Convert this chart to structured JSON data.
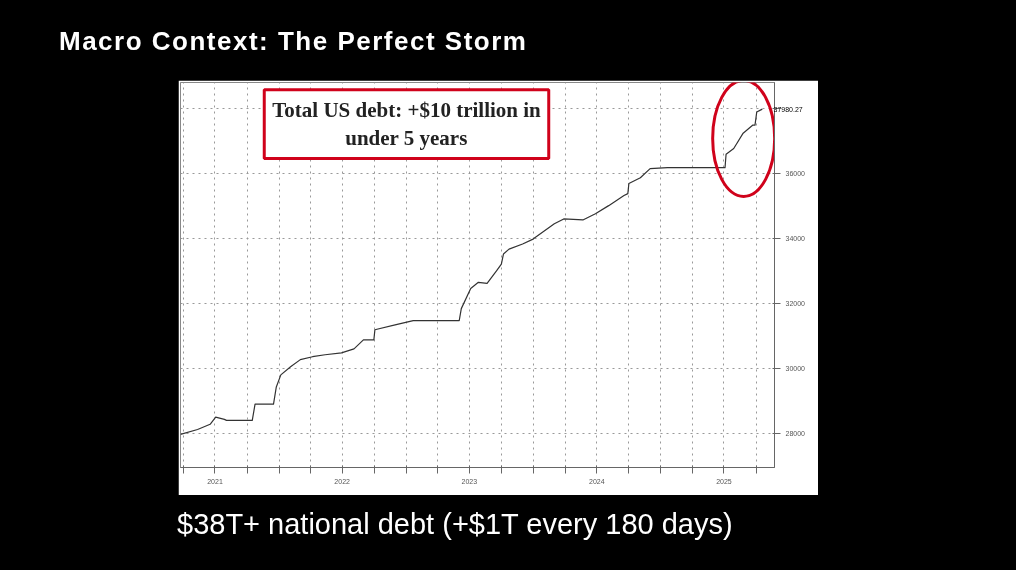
{
  "chart_data": {
    "type": "line",
    "title": "Macro Context: The Perfect Storm",
    "annotations": [
      "Total US debt: +$10 trillion in\nunder 5 years",
      "$38T+ national debt (+$1T every 180 days)"
    ],
    "x": [
      "2021-03-24",
      "2021-05-12",
      "2021-06-17",
      "2021-07-03",
      "2021-07-28",
      "2021-08-03",
      "2021-10-16",
      "2021-10-24",
      "2021-12-16",
      "2021-12-24",
      "2022-01-06",
      "2022-02-03",
      "2022-03-03",
      "2022-04-07",
      "2022-05-13",
      "2022-06-29",
      "2022-08-04",
      "2022-08-31",
      "2022-09-30",
      "2022-10-03",
      "2022-12-03",
      "2023-01-21",
      "2023-06-02",
      "2023-06-08",
      "2023-07-05",
      "2023-07-27",
      "2023-08-21",
      "2023-09-17",
      "2023-10-01",
      "2023-10-07",
      "2023-10-23",
      "2023-12-01",
      "2023-12-31",
      "2024-03-01",
      "2024-03-28",
      "2024-05-22",
      "2024-06-27",
      "2024-08-04",
      "2024-09-17",
      "2024-09-28",
      "2024-10-01",
      "2024-11-03",
      "2024-12-01",
      "2025-01-20",
      "2025-07-04",
      "2025-07-07",
      "2025-07-29",
      "2025-08-25",
      "2025-09-22",
      "2025-09-28",
      "2025-10-03",
      "2025-10-19"
    ],
    "series": [
      {
        "color": "#333333",
        "values": [
          27970,
          28120,
          28280,
          28500,
          28430,
          28400,
          28400,
          28900,
          28900,
          29430,
          29800,
          30050,
          30270,
          30360,
          30420,
          30480,
          30600,
          30880,
          30880,
          31190,
          31350,
          31470,
          31470,
          31840,
          32460,
          32650,
          32620,
          33000,
          33210,
          33520,
          33670,
          33830,
          33980,
          34450,
          34600,
          34570,
          34760,
          35010,
          35320,
          35380,
          35690,
          35870,
          36150,
          36180,
          36180,
          36590,
          36770,
          37240,
          37490,
          37490,
          37890,
          37980.27
        ],
        "value_labels": [
          null,
          null,
          null,
          null,
          null,
          null,
          null,
          null,
          null,
          null,
          null,
          null,
          null,
          null,
          null,
          null,
          null,
          null,
          null,
          null,
          null,
          null,
          null,
          null,
          null,
          null,
          null,
          null,
          null,
          null,
          null,
          null,
          null,
          null,
          null,
          null,
          null,
          null,
          null,
          null,
          null,
          null,
          null,
          null,
          null,
          null,
          null,
          null,
          null,
          null,
          null,
          "37980.27"
        ]
      }
    ],
    "xlim": [
      "2021-03-24",
      "2025-11-23"
    ],
    "xticks": [
      {
        "value": "2021-04-01",
        "label": null
      },
      {
        "value": "2021-07-01",
        "label": "2021"
      },
      {
        "value": "2021-10-01",
        "label": null
      },
      {
        "value": "2022-01-01",
        "label": null
      },
      {
        "value": "2022-04-01",
        "label": null
      },
      {
        "value": "2022-07-01",
        "label": "2022"
      },
      {
        "value": "2022-10-01",
        "label": null
      },
      {
        "value": "2023-01-01",
        "label": null
      },
      {
        "value": "2023-04-01",
        "label": null
      },
      {
        "value": "2023-07-01",
        "label": "2023"
      },
      {
        "value": "2023-10-01",
        "label": null
      },
      {
        "value": "2024-01-01",
        "label": null
      },
      {
        "value": "2024-04-01",
        "label": null
      },
      {
        "value": "2024-07-01",
        "label": "2024"
      },
      {
        "value": "2024-10-01",
        "label": null
      },
      {
        "value": "2025-01-01",
        "label": null
      },
      {
        "value": "2025-04-01",
        "label": null
      },
      {
        "value": "2025-07-01",
        "label": "2025"
      },
      {
        "value": "2025-10-01",
        "label": null
      }
    ],
    "ylim": [
      26950,
      38800
    ],
    "yticks": [
      28000,
      30000,
      32000,
      34000,
      36000,
      {
        "value": 38000,
        "label": null
      }
    ],
    "grid": true,
    "marker": "none",
    "line_style": "solid"
  }
}
